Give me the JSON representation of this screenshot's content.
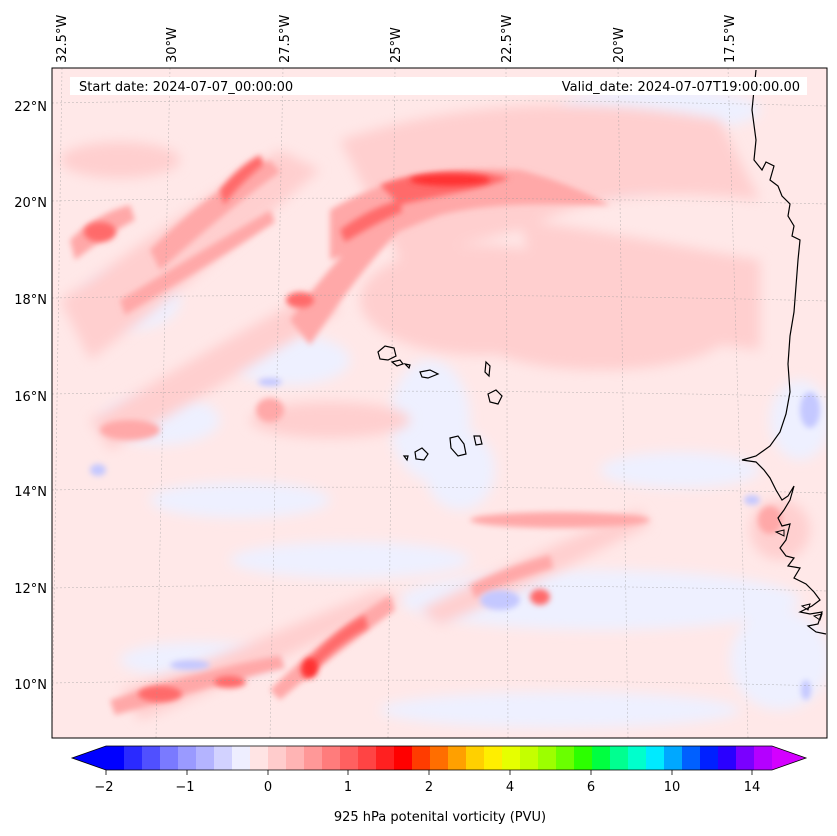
{
  "banner": {
    "start_date": "Start date: 2024-07-07_00:00:00",
    "valid_date": "Valid_date: 2024-07-07T19:00:00.00"
  },
  "longitude_labels": [
    "32.5°W",
    "30°W",
    "27.5°W",
    "25°W",
    "22.5°W",
    "20°W",
    "17.5°W"
  ],
  "latitude_labels": [
    "22°N",
    "20°N",
    "18°N",
    "16°N",
    "14°N",
    "12°N",
    "10°N"
  ],
  "colorbar": {
    "title": "925 hPa potenital vorticity (PVU)",
    "tick_labels": [
      "−2",
      "−1",
      "0",
      "1",
      "2",
      "4",
      "6",
      "10",
      "14"
    ],
    "colors": [
      "#0000ff",
      "#2a2aff",
      "#5050ff",
      "#7a7aff",
      "#9a9aff",
      "#b4b4ff",
      "#d2d2ff",
      "#eeeeff",
      "#ffe4e4",
      "#ffcccc",
      "#ffb4b4",
      "#ff9898",
      "#ff7c7c",
      "#ff6060",
      "#ff4444",
      "#ff2020",
      "#ff0000",
      "#ff3c00",
      "#ff6e00",
      "#ffa000",
      "#ffd000",
      "#ffee00",
      "#e6ff00",
      "#c4ff00",
      "#9cff00",
      "#6aff00",
      "#2cff00",
      "#00ff40",
      "#00ff90",
      "#00ffcc",
      "#00eaff",
      "#00a8ff",
      "#0060ff",
      "#0020ff",
      "#2a00ff",
      "#7a00ff",
      "#b400ff"
    ],
    "over_color": "#d400ff",
    "under_color": "#0000ff"
  },
  "colors": {
    "background_pv": "#ffe8e8",
    "weak_negative": "#eef0ff",
    "light_positive": "#ffcfcf",
    "moderate_positive": "#ffa8a8",
    "strong_positive": "#ff6a6a",
    "peak_positive": "#ff3030",
    "negative": "#c4c8ff",
    "coastline": "#000000"
  }
}
